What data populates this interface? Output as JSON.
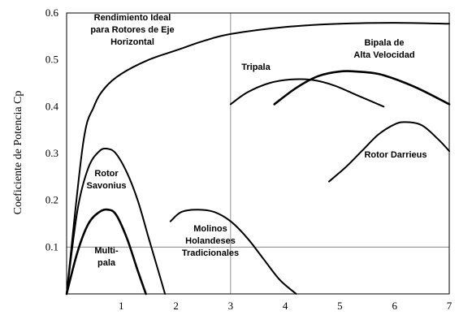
{
  "chart_data": {
    "type": "line",
    "title": "",
    "xlabel": "",
    "ylabel": "Coeficiente de Potencia Cp",
    "xlim": [
      0,
      7
    ],
    "ylim": [
      0,
      0.6
    ],
    "x_ticks": [
      "1",
      "2",
      "3",
      "4",
      "5",
      "6",
      "7"
    ],
    "y_ticks": [
      "0.1",
      "0.2",
      "0.3",
      "0.4",
      "0.5",
      "0.6"
    ],
    "grid": true,
    "legend": "none",
    "series": [
      {
        "name": "Rendimiento Ideal para Rotores de Eje Horizontal",
        "x": [
          0,
          0.3,
          0.5,
          0.7,
          1,
          1.5,
          2,
          2.5,
          3,
          4,
          5,
          6,
          7
        ],
        "y": [
          0,
          0.32,
          0.4,
          0.44,
          0.47,
          0.5,
          0.52,
          0.54,
          0.555,
          0.57,
          0.577,
          0.579,
          0.577
        ]
      },
      {
        "name": "Multi-pala",
        "x": [
          0,
          0.2,
          0.4,
          0.6,
          0.75,
          0.9,
          1.1,
          1.3,
          1.45
        ],
        "y": [
          0,
          0.09,
          0.15,
          0.175,
          0.18,
          0.17,
          0.12,
          0.05,
          0
        ]
      },
      {
        "name": "Rotor Savonius",
        "x": [
          0,
          0.2,
          0.4,
          0.6,
          0.75,
          0.9,
          1.1,
          1.3,
          1.5,
          1.7,
          1.8
        ],
        "y": [
          0,
          0.18,
          0.27,
          0.305,
          0.31,
          0.3,
          0.26,
          0.2,
          0.12,
          0.04,
          0
        ]
      },
      {
        "name": "Molinos Holandeses Tradicionales",
        "x": [
          1.9,
          2.1,
          2.4,
          2.7,
          3,
          3.3,
          3.6,
          3.9,
          4.2
        ],
        "y": [
          0.155,
          0.175,
          0.18,
          0.175,
          0.155,
          0.12,
          0.075,
          0.03,
          0
        ]
      },
      {
        "name": "Tripala",
        "x": [
          3,
          3.3,
          3.7,
          4.1,
          4.5,
          4.9,
          5.3,
          5.8
        ],
        "y": [
          0.405,
          0.43,
          0.45,
          0.458,
          0.457,
          0.445,
          0.425,
          0.4
        ]
      },
      {
        "name": "Bipala de Alta Velocidad",
        "x": [
          3.8,
          4.2,
          4.6,
          5,
          5.3,
          5.7,
          6.1,
          6.5,
          7
        ],
        "y": [
          0.405,
          0.44,
          0.465,
          0.475,
          0.475,
          0.47,
          0.455,
          0.435,
          0.405
        ]
      },
      {
        "name": "Rotor Darrieus",
        "x": [
          4.8,
          5.1,
          5.4,
          5.7,
          6,
          6.2,
          6.5,
          6.8,
          7
        ],
        "y": [
          0.24,
          0.27,
          0.305,
          0.34,
          0.362,
          0.367,
          0.36,
          0.33,
          0.305
        ]
      }
    ],
    "annotations": [
      {
        "series": 0,
        "lines": [
          "Rendimiento Ideal",
          "para Rotores de Eje",
          "Horizontal"
        ]
      },
      {
        "series": 1,
        "lines": [
          "Multi-",
          "pala"
        ]
      },
      {
        "series": 2,
        "lines": [
          "Rotor",
          "Savonius"
        ]
      },
      {
        "series": 3,
        "lines": [
          "Molinos",
          "Holandeses",
          "Tradicionales"
        ]
      },
      {
        "series": 4,
        "lines": [
          "Tripala"
        ]
      },
      {
        "series": 5,
        "lines": [
          "Bipala de",
          "Alta Velocidad"
        ]
      },
      {
        "series": 6,
        "lines": [
          "Rotor Darrieus"
        ]
      }
    ]
  }
}
